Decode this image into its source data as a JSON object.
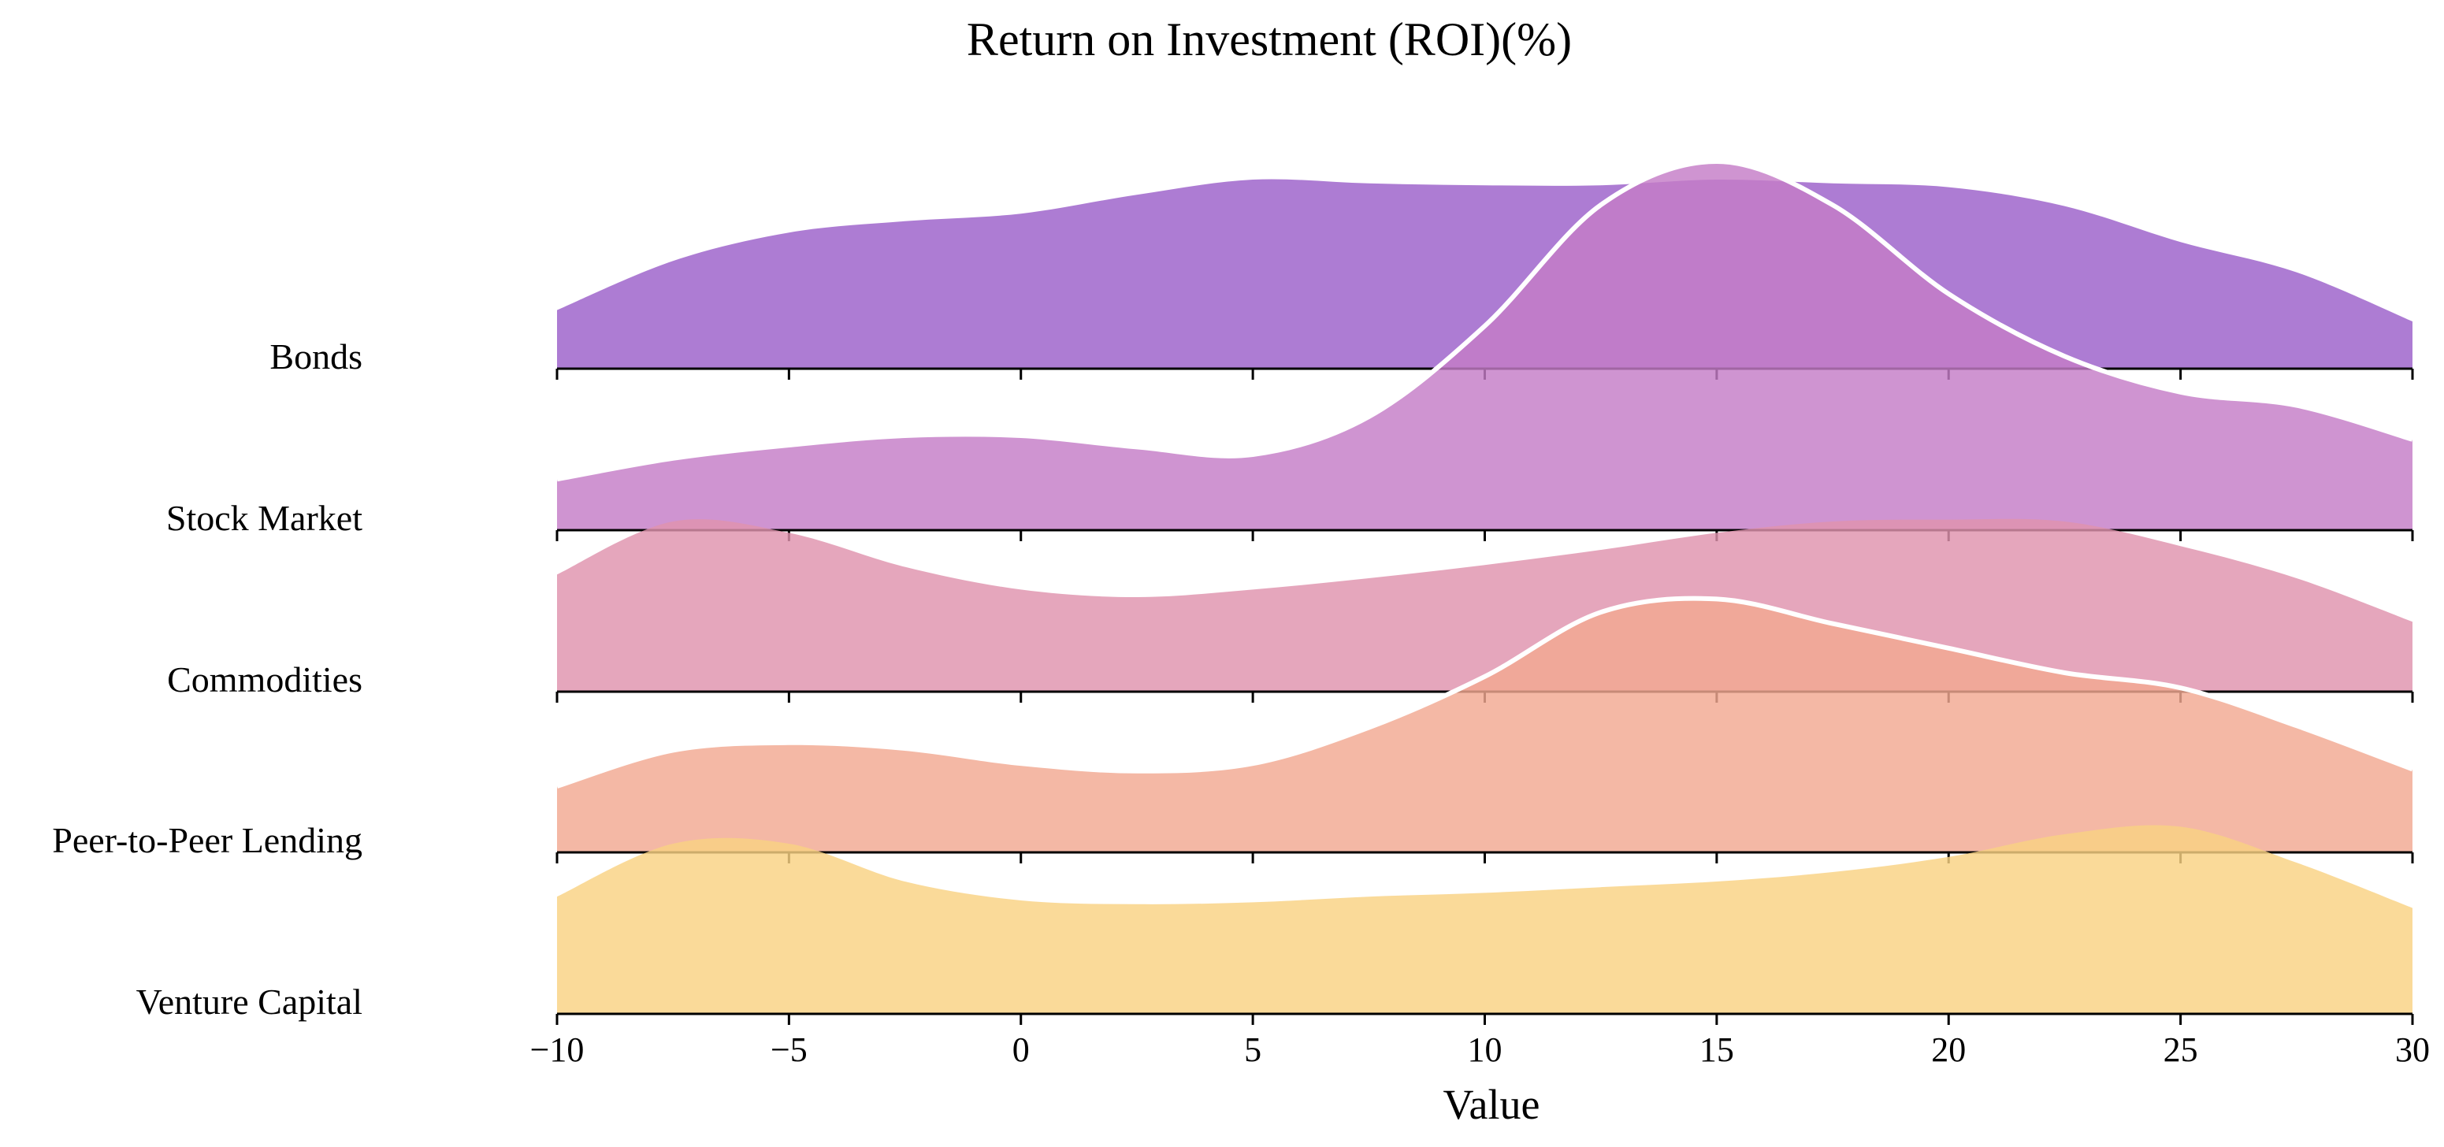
{
  "chart_data": {
    "type": "ridgeline",
    "title": "Return on Investment (ROI)(%)",
    "xlabel": "Value",
    "ylabel": "",
    "xlim": [
      -10,
      30
    ],
    "xticks": [
      -10,
      -5,
      0,
      5,
      10,
      15,
      20,
      25,
      30
    ],
    "xtick_labels": [
      "−10",
      "−5",
      "0",
      "5",
      "10",
      "15",
      "20",
      "25",
      "30"
    ],
    "grid": false,
    "series": [
      {
        "name": "Bonds",
        "color": "#9b5fc9",
        "density_x": [
          -10,
          -7.5,
          -5,
          -2.5,
          0,
          2.5,
          5,
          7.5,
          10,
          12.5,
          15,
          17.5,
          20,
          22.5,
          25,
          27.5,
          30
        ],
        "density_y": [
          0.31,
          0.57,
          0.72,
          0.78,
          0.82,
          0.92,
          1.0,
          0.98,
          0.97,
          0.97,
          1.0,
          0.98,
          0.96,
          0.86,
          0.67,
          0.51,
          0.25
        ]
      },
      {
        "name": "Stock Market",
        "color": "#c47cc7",
        "density_x": [
          -10,
          -7.5,
          -5,
          -2.5,
          0,
          2.5,
          5,
          7.5,
          10,
          12.5,
          15,
          17.5,
          20,
          22.5,
          25,
          27.5,
          30
        ],
        "density_y": [
          0.27,
          0.38,
          0.45,
          0.5,
          0.5,
          0.44,
          0.4,
          0.6,
          1.08,
          1.72,
          1.95,
          1.72,
          1.25,
          0.92,
          0.73,
          0.66,
          0.48
        ]
      },
      {
        "name": "Commodities",
        "color": "#df93ad",
        "density_x": [
          -10,
          -7.5,
          -5,
          -2.5,
          0,
          2.5,
          5,
          7.5,
          10,
          12.5,
          15,
          17.5,
          20,
          22.5,
          25,
          27.5,
          30
        ],
        "density_y": [
          0.62,
          0.9,
          0.84,
          0.66,
          0.54,
          0.5,
          0.54,
          0.6,
          0.67,
          0.75,
          0.84,
          0.9,
          0.91,
          0.9,
          0.77,
          0.6,
          0.37
        ]
      },
      {
        "name": "Peer-to-Peer Lending",
        "color": "#f2a891",
        "density_x": [
          -10,
          -7.5,
          -5,
          -2.5,
          0,
          2.5,
          5,
          7.5,
          10,
          12.5,
          15,
          17.5,
          20,
          22.5,
          25,
          27.5,
          30
        ],
        "density_y": [
          0.35,
          0.54,
          0.58,
          0.55,
          0.47,
          0.43,
          0.47,
          0.66,
          0.93,
          1.27,
          1.34,
          1.21,
          1.08,
          0.95,
          0.87,
          0.67,
          0.44
        ]
      },
      {
        "name": "Venture Capital",
        "color": "#f9d282",
        "density_x": [
          -10,
          -7.5,
          -5,
          -2.5,
          0,
          2.5,
          5,
          7.5,
          10,
          12.5,
          15,
          17.5,
          20,
          22.5,
          25,
          27.5,
          30
        ],
        "density_y": [
          0.62,
          0.9,
          0.9,
          0.7,
          0.6,
          0.58,
          0.59,
          0.62,
          0.64,
          0.67,
          0.7,
          0.75,
          0.83,
          0.95,
          0.99,
          0.8,
          0.56
        ]
      }
    ]
  }
}
